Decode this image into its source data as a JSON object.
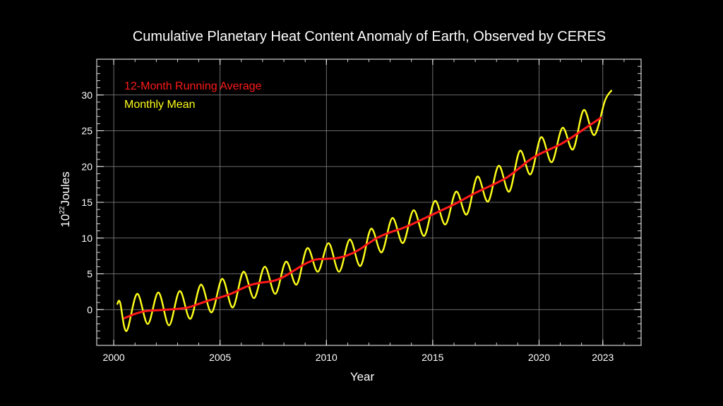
{
  "chart_data": {
    "type": "line",
    "title": "Cumulative Planetary Heat Content Anomaly of Earth, Observed by CERES",
    "xlabel": "Year",
    "ylabel": {
      "base": "10",
      "exponent": "22",
      "unit": "Joules"
    },
    "xlim": [
      1999.2,
      2024.8
    ],
    "ylim": [
      -5,
      35
    ],
    "x_ticks": [
      2000,
      2005,
      2010,
      2015,
      2020,
      2023
    ],
    "y_ticks": [
      0,
      5,
      10,
      15,
      20,
      25,
      30
    ],
    "grid": true,
    "legend_position": "top-left",
    "colors": {
      "background": "#000000",
      "axes": "#ffffff",
      "grid": "#8a8a8a",
      "running": "#ff1a1a",
      "monthly": "#ffff1a"
    },
    "series": [
      {
        "name": "12-Month Running Average",
        "color": "#ff1a1a",
        "x": [
          2000.5,
          2001.0,
          2001.5,
          2002.0,
          2002.5,
          2003.0,
          2003.5,
          2004.0,
          2004.5,
          2005.0,
          2005.5,
          2006.0,
          2006.5,
          2007.0,
          2007.5,
          2008.0,
          2008.5,
          2009.0,
          2009.5,
          2010.0,
          2010.5,
          2011.0,
          2011.5,
          2012.0,
          2012.5,
          2013.0,
          2013.5,
          2014.0,
          2014.5,
          2015.0,
          2015.5,
          2016.0,
          2016.5,
          2017.0,
          2017.5,
          2018.0,
          2018.5,
          2019.0,
          2019.5,
          2020.0,
          2020.5,
          2021.0,
          2021.5,
          2022.0,
          2022.5,
          2022.9
        ],
        "values": [
          -1.2,
          -0.6,
          -0.2,
          -0.1,
          0.0,
          0.1,
          0.3,
          0.8,
          1.3,
          1.7,
          2.2,
          2.9,
          3.5,
          3.8,
          4.0,
          4.6,
          5.5,
          6.4,
          7.0,
          7.1,
          7.2,
          7.6,
          8.3,
          9.3,
          10.2,
          10.8,
          11.3,
          11.9,
          12.6,
          13.3,
          14.0,
          14.7,
          15.5,
          16.3,
          17.0,
          17.7,
          18.5,
          19.6,
          20.8,
          21.7,
          22.4,
          23.1,
          24.0,
          25.0,
          26.0,
          26.8
        ]
      },
      {
        "name": "Monthly Mean",
        "color": "#ffff1a",
        "x": [
          2000.17,
          2000.3,
          2000.6,
          2001.1,
          2001.6,
          2002.1,
          2002.6,
          2003.1,
          2003.6,
          2004.1,
          2004.6,
          2005.1,
          2005.6,
          2006.1,
          2006.6,
          2007.1,
          2007.6,
          2008.1,
          2008.6,
          2009.1,
          2009.6,
          2010.1,
          2010.6,
          2011.1,
          2011.6,
          2012.1,
          2012.6,
          2013.1,
          2013.6,
          2014.1,
          2014.6,
          2015.1,
          2015.6,
          2016.1,
          2016.6,
          2017.1,
          2017.6,
          2018.1,
          2018.6,
          2019.1,
          2019.6,
          2020.1,
          2020.6,
          2021.1,
          2021.6,
          2022.1,
          2022.6,
          2023.1,
          2023.4
        ],
        "values": [
          0.8,
          1.0,
          -3.0,
          2.2,
          -2.0,
          2.4,
          -2.2,
          2.6,
          -1.3,
          3.5,
          -0.4,
          4.3,
          0.3,
          5.3,
          1.6,
          6.0,
          2.2,
          6.7,
          3.5,
          8.6,
          5.3,
          9.3,
          5.3,
          9.8,
          6.1,
          11.3,
          8.0,
          12.8,
          9.3,
          13.9,
          10.3,
          15.2,
          11.9,
          16.5,
          13.3,
          18.6,
          15.1,
          20.1,
          16.5,
          22.2,
          18.9,
          24.1,
          20.6,
          25.4,
          22.4,
          27.9,
          24.4,
          29.2,
          30.6
        ]
      }
    ]
  }
}
